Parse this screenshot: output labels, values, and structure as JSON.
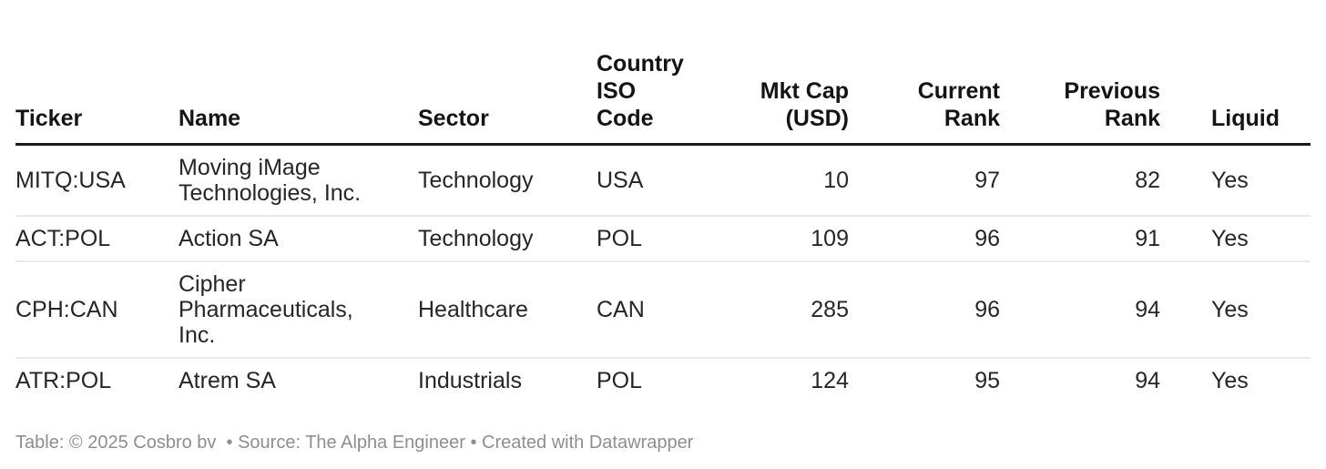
{
  "chart_data": {
    "type": "table",
    "title": "",
    "columns": [
      {
        "key": "ticker",
        "label": "Ticker",
        "align": "left"
      },
      {
        "key": "name",
        "label": "Name",
        "align": "left"
      },
      {
        "key": "sector",
        "label": "Sector",
        "align": "left"
      },
      {
        "key": "country-iso-code",
        "label": "Country\nISO\nCode",
        "align": "left"
      },
      {
        "key": "mkt-cap-usd",
        "label": "Mkt Cap\n(USD)",
        "align": "right"
      },
      {
        "key": "current-rank",
        "label": "Current\nRank",
        "align": "right"
      },
      {
        "key": "previous-rank",
        "label": "Previous\nRank",
        "align": "right"
      },
      {
        "key": "liquid",
        "label": "Liquid",
        "align": "left"
      }
    ],
    "rows": [
      [
        "MITQ:USA",
        "Moving iMage Technologies, Inc.",
        "Technology",
        "USA",
        "10",
        "97",
        "82",
        "Yes"
      ],
      [
        "ACT:POL",
        "Action SA",
        "Technology",
        "POL",
        "109",
        "96",
        "91",
        "Yes"
      ],
      [
        "CPH:CAN",
        "Cipher Pharmaceuticals, Inc.",
        "Healthcare",
        "CAN",
        "285",
        "96",
        "94",
        "Yes"
      ],
      [
        "ATR:POL",
        "Atrem SA",
        "Industrials",
        "POL",
        "124",
        "95",
        "94",
        "Yes"
      ]
    ],
    "grid": "horizontal-rules-only",
    "legend": "none"
  },
  "footer": {
    "text": "Table: © 2025 Cosbro bv  • Source: The Alpha Engineer • Created with Datawrapper"
  },
  "colors": {
    "background": "#ffffff",
    "header_text": "#141414",
    "header_rule": "#1a1a1a",
    "body_text": "#262626",
    "row_rule": "#e9e9e9",
    "footer_text": "#8e8e8e"
  }
}
